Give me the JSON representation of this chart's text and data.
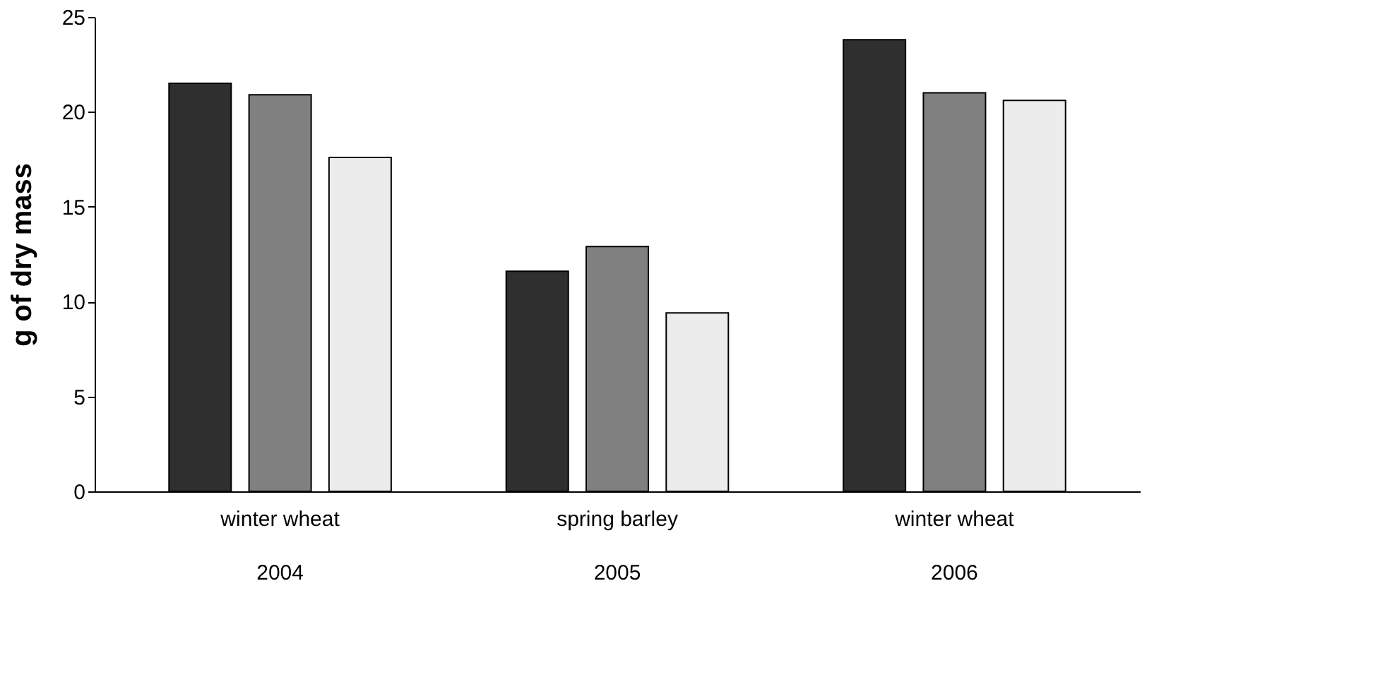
{
  "chart_data": {
    "type": "bar",
    "ylabel": "g of dry mass",
    "categories": [
      "winter wheat\n2004",
      "spring barley\n2005",
      "winter wheat\n2006"
    ],
    "series": [
      {
        "color": "#2f2f2f",
        "values": [
          21.5,
          11.6,
          23.8
        ]
      },
      {
        "color": "#808080",
        "values": [
          20.9,
          12.9,
          21.0
        ]
      },
      {
        "color": "#ececec",
        "values": [
          17.6,
          9.4,
          20.6
        ]
      }
    ],
    "ylim": [
      0,
      25
    ],
    "yticks": [
      0,
      5,
      10,
      15,
      20,
      25
    ],
    "grid": false,
    "legend": false
  }
}
